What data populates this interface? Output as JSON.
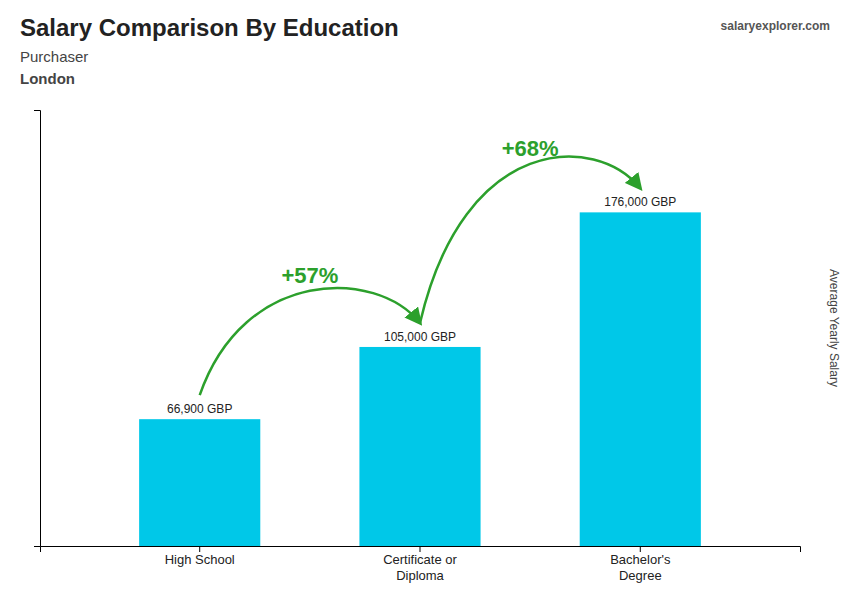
{
  "chart_data": {
    "type": "bar",
    "title": "Salary Comparison By Education",
    "subtitle": [
      "Purchaser",
      "London"
    ],
    "source": "salaryexplorer.com",
    "y_label": "Average Yearly Salary",
    "categories": [
      "High School",
      "Certificate or\nDiploma",
      "Bachelor's\nDegree"
    ],
    "values": [
      66900,
      105000,
      176000
    ],
    "value_labels": [
      "66,900 GBP",
      "105,000 GBP",
      "176,000 GBP"
    ],
    "data_labels": true,
    "color": "#00c8e8",
    "ylim": [
      0,
      230000
    ],
    "tick_labels": "x",
    "grid": false,
    "annotations": [
      "+57%",
      "+68%"
    ]
  }
}
